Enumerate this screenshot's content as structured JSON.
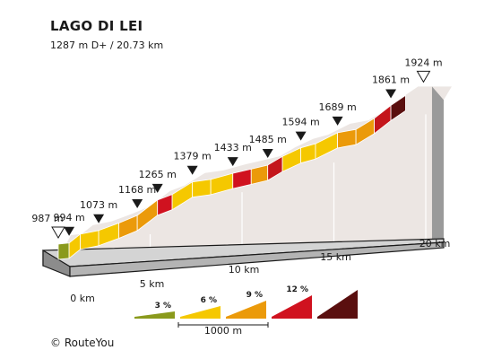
{
  "title": "LAGO DI LEI",
  "subtitle": "1287 m D+ / 20.73 km",
  "footer": "© RouteYou",
  "chart_data": {
    "type": "area",
    "title": "LAGO DI LEI",
    "subtitle": "1287 m D+ / 20.73 km",
    "x_unit": "km",
    "y_unit": "m",
    "xlim": [
      0,
      20.73
    ],
    "x_ticks": [
      {
        "value": 0,
        "label": "0 km"
      },
      {
        "value": 5,
        "label": "5 km"
      },
      {
        "value": 10,
        "label": "10 km"
      },
      {
        "value": 15,
        "label": "15 km"
      },
      {
        "value": 20,
        "label": "20 km"
      }
    ],
    "elevation_profile": [
      {
        "x": 0,
        "y": 987
      },
      {
        "x": 0.59,
        "y": 994
      },
      {
        "x": 1.2,
        "y": 1050
      },
      {
        "x": 2.2,
        "y": 1073
      },
      {
        "x": 3.3,
        "y": 1120
      },
      {
        "x": 4.3,
        "y": 1168
      },
      {
        "x": 5.4,
        "y": 1265
      },
      {
        "x": 6.2,
        "y": 1300
      },
      {
        "x": 7.3,
        "y": 1379
      },
      {
        "x": 8.3,
        "y": 1395
      },
      {
        "x": 9.5,
        "y": 1433
      },
      {
        "x": 10.5,
        "y": 1460
      },
      {
        "x": 11.4,
        "y": 1485
      },
      {
        "x": 12.2,
        "y": 1540
      },
      {
        "x": 13.2,
        "y": 1594
      },
      {
        "x": 14.0,
        "y": 1620
      },
      {
        "x": 15.2,
        "y": 1689
      },
      {
        "x": 16.2,
        "y": 1710
      },
      {
        "x": 17.2,
        "y": 1780
      },
      {
        "x": 18.1,
        "y": 1861
      },
      {
        "x": 18.9,
        "y": 1924
      },
      {
        "x": 20.73,
        "y": 1924
      }
    ],
    "segment_gradients_pct": [
      2,
      4,
      4,
      4,
      6,
      6,
      8,
      4,
      4,
      4,
      8,
      6,
      10,
      4,
      4,
      4,
      6,
      6,
      10,
      12
    ],
    "waypoints": [
      {
        "x": 0,
        "elevation_label": "987 m",
        "marker": "start"
      },
      {
        "x": 0.59,
        "elevation_label": "994 m",
        "marker": "point"
      },
      {
        "x": 2.2,
        "elevation_label": "1073 m",
        "marker": "point"
      },
      {
        "x": 4.3,
        "elevation_label": "1168 m",
        "marker": "point"
      },
      {
        "x": 5.4,
        "elevation_label": "1265 m",
        "marker": "point"
      },
      {
        "x": 7.3,
        "elevation_label": "1379 m",
        "marker": "point"
      },
      {
        "x": 9.5,
        "elevation_label": "1433 m",
        "marker": "point"
      },
      {
        "x": 11.4,
        "elevation_label": "1485 m",
        "marker": "point"
      },
      {
        "x": 13.2,
        "elevation_label": "1594 m",
        "marker": "point"
      },
      {
        "x": 15.2,
        "elevation_label": "1689 m",
        "marker": "point"
      },
      {
        "x": 18.1,
        "elevation_label": "1861 m",
        "marker": "point"
      },
      {
        "x": 18.9,
        "elevation_label": "1924 m",
        "marker": "end"
      }
    ],
    "legend": {
      "items": [
        {
          "label": "3 %",
          "gradient_pct": 3,
          "color": "#8a9a1c"
        },
        {
          "label": "6 %",
          "gradient_pct": 6,
          "color": "#f5c800"
        },
        {
          "label": "9 %",
          "gradient_pct": 9,
          "color": "#eb9a0a"
        },
        {
          "label": "12 %",
          "gradient_pct": 12,
          "color": "#d0121f"
        },
        {
          "label": "",
          "gradient_pct": 15,
          "color": "#5a0f0f"
        }
      ],
      "scale_label": "1000 m"
    },
    "colors": {
      "g2": "#8a9a1c",
      "g4": "#f5c800",
      "g6": "#eb9a0a",
      "g8": "#d0121f",
      "g10": "#c4161c",
      "g12": "#5a0f0f",
      "wall": "#ece6e3",
      "base_top": "#d4d4d4",
      "base_front": "#8c8c8c",
      "marker": "#1a1a1a"
    }
  }
}
